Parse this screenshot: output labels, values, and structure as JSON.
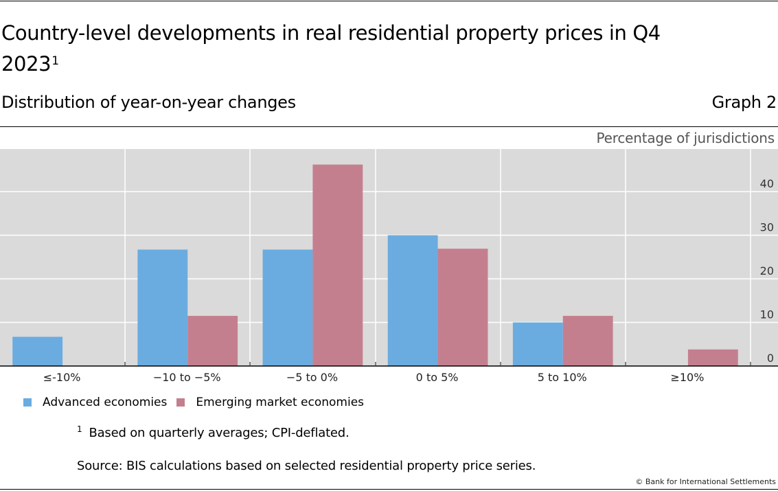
{
  "header": {
    "title": "Country-level developments in real residential property prices in Q4 2023",
    "title_footnote_marker": "1",
    "subtitle": "Distribution of year-on-year changes",
    "graph_number": "Graph 2",
    "unit_label": "Percentage of jurisdictions"
  },
  "colors": {
    "advanced": "#6aace0",
    "emerging": "#c47f8f",
    "plot_background": "#dadada",
    "gridline": "#ffffff"
  },
  "chart_data": {
    "type": "bar",
    "title": "Country-level developments in real residential property prices in Q4 2023",
    "subtitle": "Distribution of year-on-year changes",
    "xlabel": "",
    "ylabel": "Percentage of jurisdictions",
    "categories": [
      "≤-10%",
      "−10 to −5%",
      "−5 to 0%",
      "0 to 5%",
      "5 to 10%",
      "≥10%"
    ],
    "series": [
      {
        "name": "Advanced economies",
        "values": [
          6.7,
          26.7,
          26.7,
          30.0,
          10.0,
          0
        ]
      },
      {
        "name": "Emerging market economies",
        "values": [
          0,
          11.5,
          46.2,
          26.9,
          11.5,
          3.8
        ]
      }
    ],
    "ylim": [
      0,
      50
    ],
    "yticks": [
      0,
      10,
      20,
      30,
      40
    ],
    "y_axis_side": "right",
    "grid": true,
    "legend_position": "bottom-left"
  },
  "legend": {
    "items": [
      {
        "label": "Advanced economies"
      },
      {
        "label": "Emerging market economies"
      }
    ]
  },
  "footer": {
    "footnote_marker": "1",
    "footnote": "Based on quarterly averages; CPI-deflated.",
    "source": "Source: BIS calculations based on selected residential property price series.",
    "copyright": "© Bank for International Settlements"
  }
}
